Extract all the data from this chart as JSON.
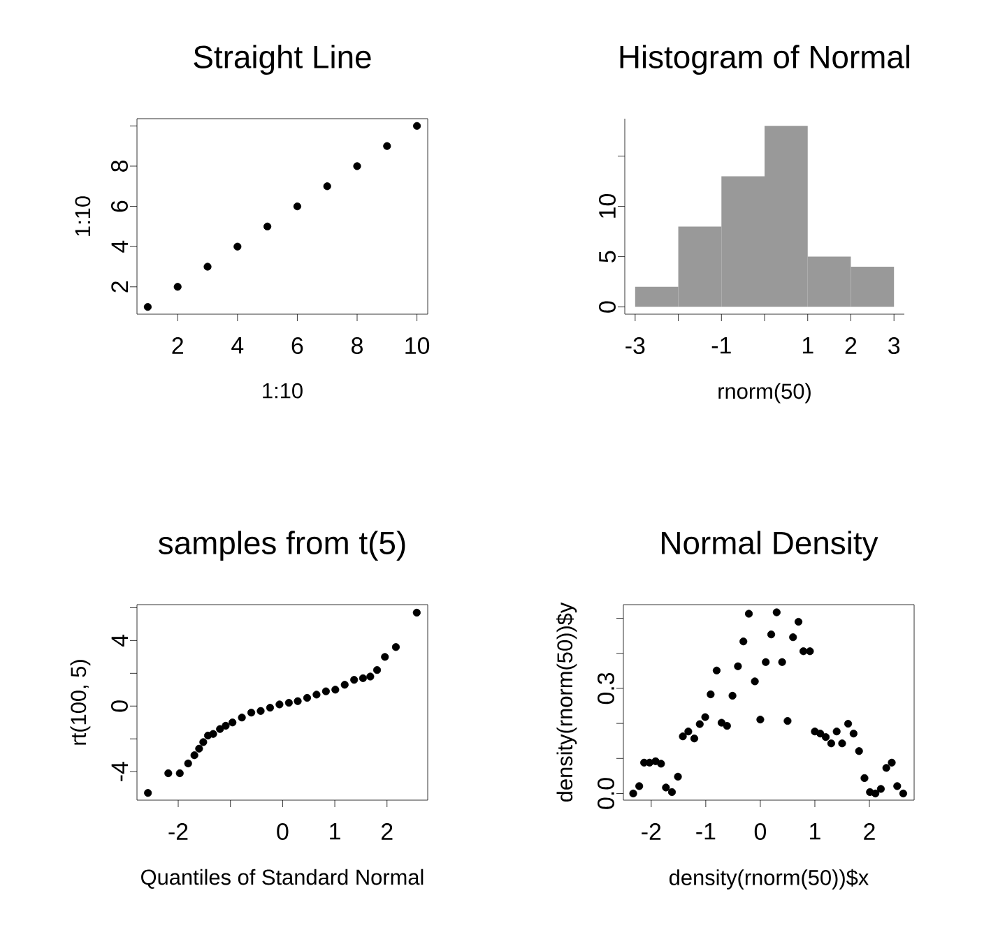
{
  "chart_data": [
    {
      "type": "scatter",
      "title": "Straight Line",
      "xlabel": "1:10",
      "ylabel": "1:10",
      "color": "#000000",
      "marker": "circle",
      "x": [
        1,
        2,
        3,
        4,
        5,
        6,
        7,
        8,
        9,
        10
      ],
      "values": [
        1,
        2,
        3,
        4,
        5,
        6,
        7,
        8,
        9,
        10
      ],
      "xlim": [
        0.64,
        10.36
      ],
      "ylim": [
        0.64,
        10.36
      ],
      "xticks": [
        2,
        4,
        6,
        8,
        10
      ],
      "yticks": [
        2,
        4,
        6,
        8,
        {
          "value": 10,
          "label": null
        }
      ]
    },
    {
      "type": "histogram",
      "title": "Histogram of Normal",
      "xlabel": "rnorm(50)",
      "color": "#999999",
      "bins": [
        -3,
        -2,
        -1,
        0,
        1,
        2,
        3
      ],
      "values": [
        2,
        8,
        13,
        18,
        5,
        4
      ],
      "xlim": [
        -3.24,
        3.24
      ],
      "ylim": [
        -0.72,
        18.72
      ],
      "xticks": [
        -3,
        {
          "value": -2,
          "label": null
        },
        -1,
        {
          "value": 0,
          "label": null
        },
        1,
        2,
        3
      ],
      "yticks": [
        0,
        5,
        10,
        {
          "value": 15,
          "label": null
        }
      ]
    },
    {
      "type": "scatter",
      "title": "samples from t(5)",
      "xlabel": "Quantiles of Standard Normal",
      "ylabel": "rt(100, 5)",
      "color": "#000000",
      "marker": "circle",
      "x": [
        -2.58,
        -2.19,
        -1.97,
        -1.81,
        -1.69,
        -1.6,
        -1.52,
        -1.43,
        -1.33,
        -1.2,
        -1.09,
        -0.96,
        -0.78,
        -0.6,
        -0.42,
        -0.24,
        -0.06,
        0.12,
        0.29,
        0.47,
        0.65,
        0.83,
        1.01,
        1.19,
        1.37,
        1.54,
        1.68,
        1.81,
        1.96,
        2.17,
        2.57
      ],
      "values": [
        -5.3,
        -4.1,
        -4.1,
        -3.5,
        -3.0,
        -2.6,
        -2.2,
        -1.8,
        -1.7,
        -1.4,
        -1.2,
        -1.0,
        -0.7,
        -0.4,
        -0.3,
        -0.1,
        0.1,
        0.2,
        0.3,
        0.5,
        0.7,
        0.9,
        1.0,
        1.3,
        1.6,
        1.7,
        1.8,
        2.2,
        3.0,
        3.6,
        5.7
      ],
      "xlim": [
        -2.79,
        2.78
      ],
      "ylim": [
        -5.74,
        6.19
      ],
      "xticks": [
        -2,
        {
          "value": -1,
          "label": null
        },
        0,
        1,
        2
      ],
      "yticks": [
        -4,
        {
          "value": -2,
          "label": null
        },
        0,
        {
          "value": 2,
          "label": null
        },
        4,
        {
          "value": 6,
          "label": null
        }
      ]
    },
    {
      "type": "scatter",
      "title": "Normal Density",
      "xlabel": "density(rnorm(50))$x",
      "ylabel": "density(rnorm(50))$y",
      "color": "#000000",
      "marker": "circle",
      "x": [
        -2.33,
        -2.22,
        -2.13,
        -2.03,
        -1.92,
        -1.82,
        -1.73,
        -1.62,
        -1.51,
        -1.42,
        -1.32,
        -1.21,
        -1.11,
        -1.01,
        -0.91,
        -0.8,
        -0.71,
        -0.61,
        -0.51,
        -0.41,
        -0.31,
        -0.21,
        -0.1,
        0.0,
        0.1,
        0.2,
        0.3,
        0.4,
        0.5,
        0.6,
        0.7,
        0.79,
        0.91,
        1.0,
        1.1,
        1.2,
        1.3,
        1.4,
        1.5,
        1.61,
        1.71,
        1.81,
        1.91,
        2.01,
        2.11,
        2.21,
        2.31,
        2.41,
        2.51,
        2.62
      ],
      "values": [
        0.0,
        0.021,
        0.088,
        0.088,
        0.092,
        0.085,
        0.017,
        0.004,
        0.048,
        0.163,
        0.177,
        0.157,
        0.198,
        0.218,
        0.283,
        0.351,
        0.202,
        0.193,
        0.279,
        0.363,
        0.434,
        0.513,
        0.32,
        0.211,
        0.375,
        0.454,
        0.517,
        0.375,
        0.207,
        0.446,
        0.49,
        0.406,
        0.406,
        0.177,
        0.171,
        0.161,
        0.143,
        0.177,
        0.143,
        0.199,
        0.171,
        0.121,
        0.044,
        0.004,
        0.0,
        0.013,
        0.073,
        0.088,
        0.021,
        0.0
      ],
      "xlim": [
        -2.51,
        2.82
      ],
      "ylim": [
        -0.019,
        0.539
      ],
      "xticks": [
        -2,
        -1,
        0,
        1,
        2
      ],
      "yticks": [
        {
          "value": 0.0,
          "label": "0.0"
        },
        {
          "value": 0.1,
          "label": null
        },
        {
          "value": 0.2,
          "label": null
        },
        {
          "value": 0.3,
          "label": "0.3"
        },
        {
          "value": 0.4,
          "label": null
        },
        {
          "value": 0.5,
          "label": null
        }
      ]
    }
  ]
}
